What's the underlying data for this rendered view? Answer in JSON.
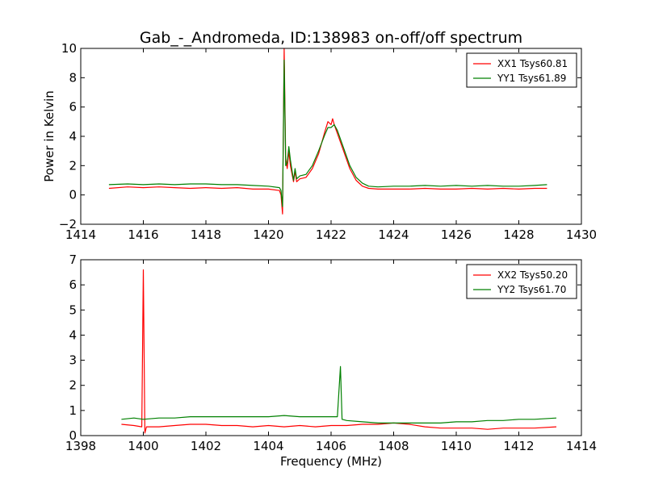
{
  "chart_data": [
    {
      "type": "line",
      "title": "Gab_-_Andromeda, ID:138983 on-off/off spectrum",
      "xlabel": "",
      "ylabel": "Power in Kelvin",
      "xlim": [
        1414,
        1430
      ],
      "ylim": [
        -2,
        10
      ],
      "xticks": [
        1414,
        1416,
        1418,
        1420,
        1422,
        1424,
        1426,
        1428,
        1430
      ],
      "yticks": [
        -2,
        0,
        2,
        4,
        6,
        8,
        10
      ],
      "ytick_labels": [
        "−2",
        "0",
        "2",
        "4",
        "6",
        "8",
        "10"
      ],
      "legend_location": "top-right",
      "series": [
        {
          "name": "XX1 Tsys60.81",
          "color": "#ff0000",
          "points": [
            [
              1414.9,
              0.45
            ],
            [
              1415.5,
              0.55
            ],
            [
              1416,
              0.5
            ],
            [
              1416.5,
              0.55
            ],
            [
              1417,
              0.5
            ],
            [
              1417.5,
              0.45
            ],
            [
              1418,
              0.5
            ],
            [
              1418.5,
              0.45
            ],
            [
              1419,
              0.5
            ],
            [
              1419.5,
              0.4
            ],
            [
              1420,
              0.4
            ],
            [
              1420.35,
              0.3
            ],
            [
              1420.4,
              0.0
            ],
            [
              1420.45,
              -1.3
            ],
            [
              1420.5,
              10.0
            ],
            [
              1420.55,
              2.5
            ],
            [
              1420.6,
              1.8
            ],
            [
              1420.65,
              3.0
            ],
            [
              1420.7,
              2.0
            ],
            [
              1420.8,
              0.9
            ],
            [
              1420.85,
              1.6
            ],
            [
              1420.9,
              0.9
            ],
            [
              1421.0,
              1.1
            ],
            [
              1421.2,
              1.2
            ],
            [
              1421.4,
              1.8
            ],
            [
              1421.6,
              2.8
            ],
            [
              1421.8,
              4.3
            ],
            [
              1421.9,
              5.0
            ],
            [
              1422.0,
              4.8
            ],
            [
              1422.05,
              5.2
            ],
            [
              1422.1,
              4.8
            ],
            [
              1422.2,
              4.2
            ],
            [
              1422.4,
              3.0
            ],
            [
              1422.6,
              1.8
            ],
            [
              1422.8,
              1.0
            ],
            [
              1423.0,
              0.6
            ],
            [
              1423.2,
              0.45
            ],
            [
              1423.5,
              0.4
            ],
            [
              1424,
              0.4
            ],
            [
              1424.5,
              0.4
            ],
            [
              1425,
              0.45
            ],
            [
              1425.5,
              0.4
            ],
            [
              1426,
              0.4
            ],
            [
              1426.5,
              0.45
            ],
            [
              1427,
              0.4
            ],
            [
              1427.5,
              0.45
            ],
            [
              1428,
              0.4
            ],
            [
              1428.5,
              0.45
            ],
            [
              1428.9,
              0.45
            ]
          ]
        },
        {
          "name": "YY1 Tsys61.89",
          "color": "#008000",
          "points": [
            [
              1414.9,
              0.7
            ],
            [
              1415.5,
              0.75
            ],
            [
              1416,
              0.7
            ],
            [
              1416.5,
              0.75
            ],
            [
              1417,
              0.7
            ],
            [
              1417.5,
              0.75
            ],
            [
              1418,
              0.75
            ],
            [
              1418.5,
              0.7
            ],
            [
              1419,
              0.7
            ],
            [
              1419.5,
              0.65
            ],
            [
              1420,
              0.6
            ],
            [
              1420.35,
              0.5
            ],
            [
              1420.4,
              0.3
            ],
            [
              1420.45,
              -0.8
            ],
            [
              1420.5,
              9.2
            ],
            [
              1420.55,
              2.0
            ],
            [
              1420.6,
              2.2
            ],
            [
              1420.65,
              3.3
            ],
            [
              1420.7,
              2.4
            ],
            [
              1420.8,
              1.0
            ],
            [
              1420.85,
              1.8
            ],
            [
              1420.9,
              1.1
            ],
            [
              1421.0,
              1.3
            ],
            [
              1421.2,
              1.4
            ],
            [
              1421.4,
              2.0
            ],
            [
              1421.6,
              3.0
            ],
            [
              1421.8,
              4.1
            ],
            [
              1421.9,
              4.6
            ],
            [
              1422.0,
              4.6
            ],
            [
              1422.1,
              4.8
            ],
            [
              1422.2,
              4.4
            ],
            [
              1422.4,
              3.2
            ],
            [
              1422.6,
              2.0
            ],
            [
              1422.8,
              1.2
            ],
            [
              1423.0,
              0.8
            ],
            [
              1423.2,
              0.6
            ],
            [
              1423.5,
              0.55
            ],
            [
              1424,
              0.6
            ],
            [
              1424.5,
              0.6
            ],
            [
              1425,
              0.65
            ],
            [
              1425.5,
              0.6
            ],
            [
              1426,
              0.65
            ],
            [
              1426.5,
              0.6
            ],
            [
              1427,
              0.65
            ],
            [
              1427.5,
              0.6
            ],
            [
              1428,
              0.6
            ],
            [
              1428.5,
              0.65
            ],
            [
              1428.9,
              0.7
            ]
          ]
        }
      ]
    },
    {
      "type": "line",
      "title": "",
      "xlabel": "Frequency (MHz)",
      "ylabel": "",
      "xlim": [
        1398,
        1414
      ],
      "ylim": [
        0,
        7
      ],
      "xticks": [
        1398,
        1400,
        1402,
        1404,
        1406,
        1408,
        1410,
        1412,
        1414
      ],
      "yticks": [
        0,
        1,
        2,
        3,
        4,
        5,
        6,
        7
      ],
      "ytick_labels": [
        "0",
        "1",
        "2",
        "3",
        "4",
        "5",
        "6",
        "7"
      ],
      "legend_location": "top-right",
      "series": [
        {
          "name": "XX2 Tsys50.20",
          "color": "#ff0000",
          "points": [
            [
              1399.3,
              0.45
            ],
            [
              1399.7,
              0.4
            ],
            [
              1399.95,
              0.35
            ],
            [
              1400.0,
              6.6
            ],
            [
              1400.05,
              0.1
            ],
            [
              1400.1,
              0.35
            ],
            [
              1400.5,
              0.35
            ],
            [
              1401,
              0.4
            ],
            [
              1401.5,
              0.45
            ],
            [
              1402,
              0.45
            ],
            [
              1402.5,
              0.4
            ],
            [
              1403,
              0.4
            ],
            [
              1403.5,
              0.35
            ],
            [
              1404,
              0.4
            ],
            [
              1404.5,
              0.35
            ],
            [
              1405,
              0.4
            ],
            [
              1405.5,
              0.35
            ],
            [
              1406,
              0.4
            ],
            [
              1406.5,
              0.4
            ],
            [
              1407,
              0.45
            ],
            [
              1407.5,
              0.45
            ],
            [
              1408,
              0.5
            ],
            [
              1408.5,
              0.45
            ],
            [
              1409,
              0.35
            ],
            [
              1409.5,
              0.3
            ],
            [
              1410,
              0.3
            ],
            [
              1410.5,
              0.3
            ],
            [
              1411,
              0.25
            ],
            [
              1411.5,
              0.3
            ],
            [
              1412,
              0.3
            ],
            [
              1412.5,
              0.3
            ],
            [
              1413.2,
              0.35
            ]
          ]
        },
        {
          "name": "YY2 Tsys61.70",
          "color": "#008000",
          "points": [
            [
              1399.3,
              0.65
            ],
            [
              1399.7,
              0.7
            ],
            [
              1400,
              0.65
            ],
            [
              1400.5,
              0.7
            ],
            [
              1401,
              0.7
            ],
            [
              1401.5,
              0.75
            ],
            [
              1402,
              0.75
            ],
            [
              1402.5,
              0.75
            ],
            [
              1403,
              0.75
            ],
            [
              1403.5,
              0.75
            ],
            [
              1404,
              0.75
            ],
            [
              1404.5,
              0.8
            ],
            [
              1405,
              0.75
            ],
            [
              1405.5,
              0.75
            ],
            [
              1406,
              0.75
            ],
            [
              1406.2,
              0.75
            ],
            [
              1406.3,
              2.75
            ],
            [
              1406.35,
              0.65
            ],
            [
              1406.5,
              0.6
            ],
            [
              1407,
              0.55
            ],
            [
              1407.5,
              0.5
            ],
            [
              1408,
              0.5
            ],
            [
              1408.5,
              0.5
            ],
            [
              1409,
              0.5
            ],
            [
              1409.5,
              0.5
            ],
            [
              1410,
              0.55
            ],
            [
              1410.5,
              0.55
            ],
            [
              1411,
              0.6
            ],
            [
              1411.5,
              0.6
            ],
            [
              1412,
              0.65
            ],
            [
              1412.5,
              0.65
            ],
            [
              1413.2,
              0.7
            ]
          ]
        }
      ]
    }
  ]
}
